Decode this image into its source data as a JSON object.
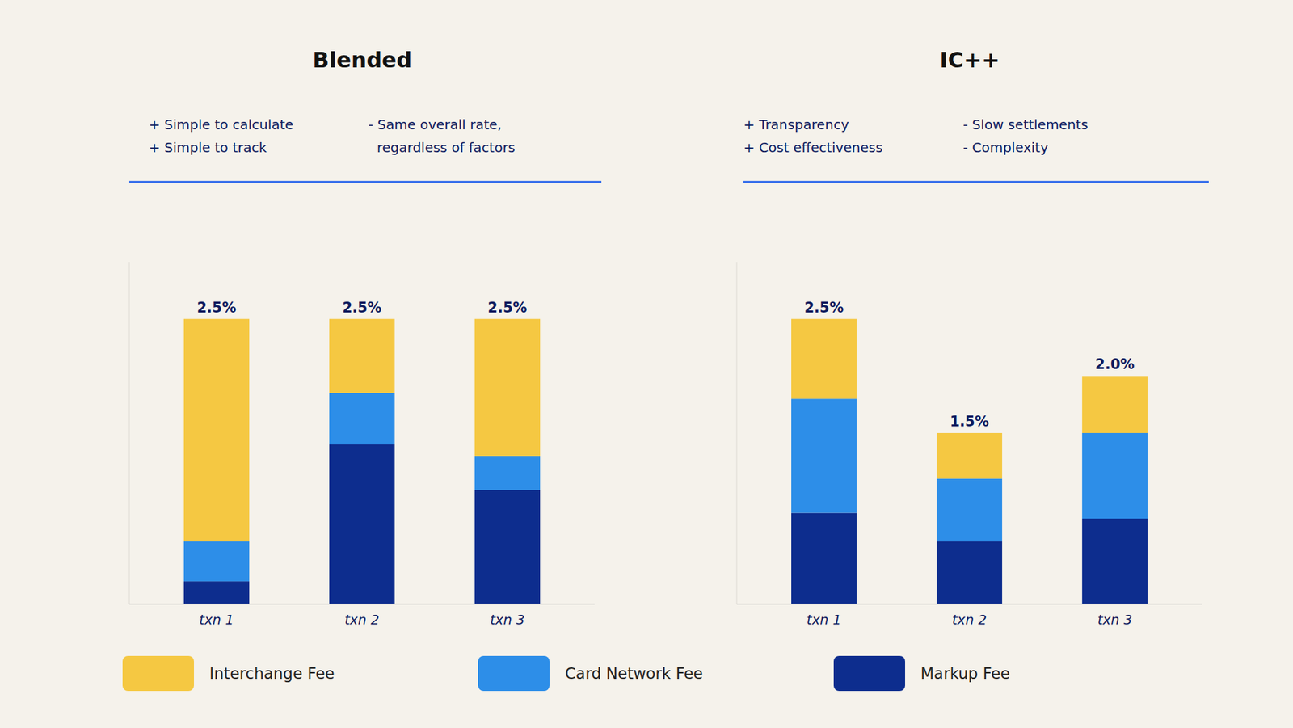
{
  "chart_data": [
    {
      "type": "bar",
      "title": "Blended",
      "stacked": true,
      "categories": [
        "txn 1",
        "txn 2",
        "txn 3"
      ],
      "series": [
        {
          "name": "Interchange Fee",
          "color": "#F5C842",
          "values": [
            1.95,
            0.65,
            1.2
          ]
        },
        {
          "name": "Card Network Fee",
          "color": "#2D8EE8",
          "values": [
            0.35,
            0.45,
            0.3
          ]
        },
        {
          "name": "Markup Fee",
          "color": "#0D2D8E",
          "values": [
            0.2,
            1.4,
            1.0
          ]
        }
      ],
      "totals": [
        2.5,
        2.5,
        2.5
      ],
      "total_labels": [
        "2.5%",
        "2.5%",
        "2.5%"
      ],
      "annotations": [
        "+ Simple to calculate\n+ Simple to track",
        "- Same overall rate,\n  regardless of factors"
      ],
      "ylim": [
        0,
        3
      ],
      "tick_labels": "x",
      "grid": false,
      "legend": "bottom"
    },
    {
      "type": "bar",
      "title": "IC++",
      "stacked": true,
      "categories": [
        "txn 1",
        "txn 2",
        "txn 3"
      ],
      "series": [
        {
          "name": "Interchange Fee",
          "color": "#F5C842",
          "values": [
            0.7,
            0.4,
            0.5
          ]
        },
        {
          "name": "Card Network Fee",
          "color": "#2D8EE8",
          "values": [
            1.0,
            0.55,
            0.75
          ]
        },
        {
          "name": "Markup Fee",
          "color": "#0D2D8E",
          "values": [
            0.8,
            0.55,
            0.75
          ]
        }
      ],
      "totals": [
        2.5,
        1.5,
        2.0
      ],
      "total_labels": [
        "2.5%",
        "1.5%",
        "2.0%"
      ],
      "annotations": [
        "+ Transparency\n+ Cost effectiveness",
        "- Slow settlements\n- Complexity"
      ],
      "ylim": [
        0,
        3
      ],
      "tick_labels": "x",
      "grid": false
    }
  ]
}
